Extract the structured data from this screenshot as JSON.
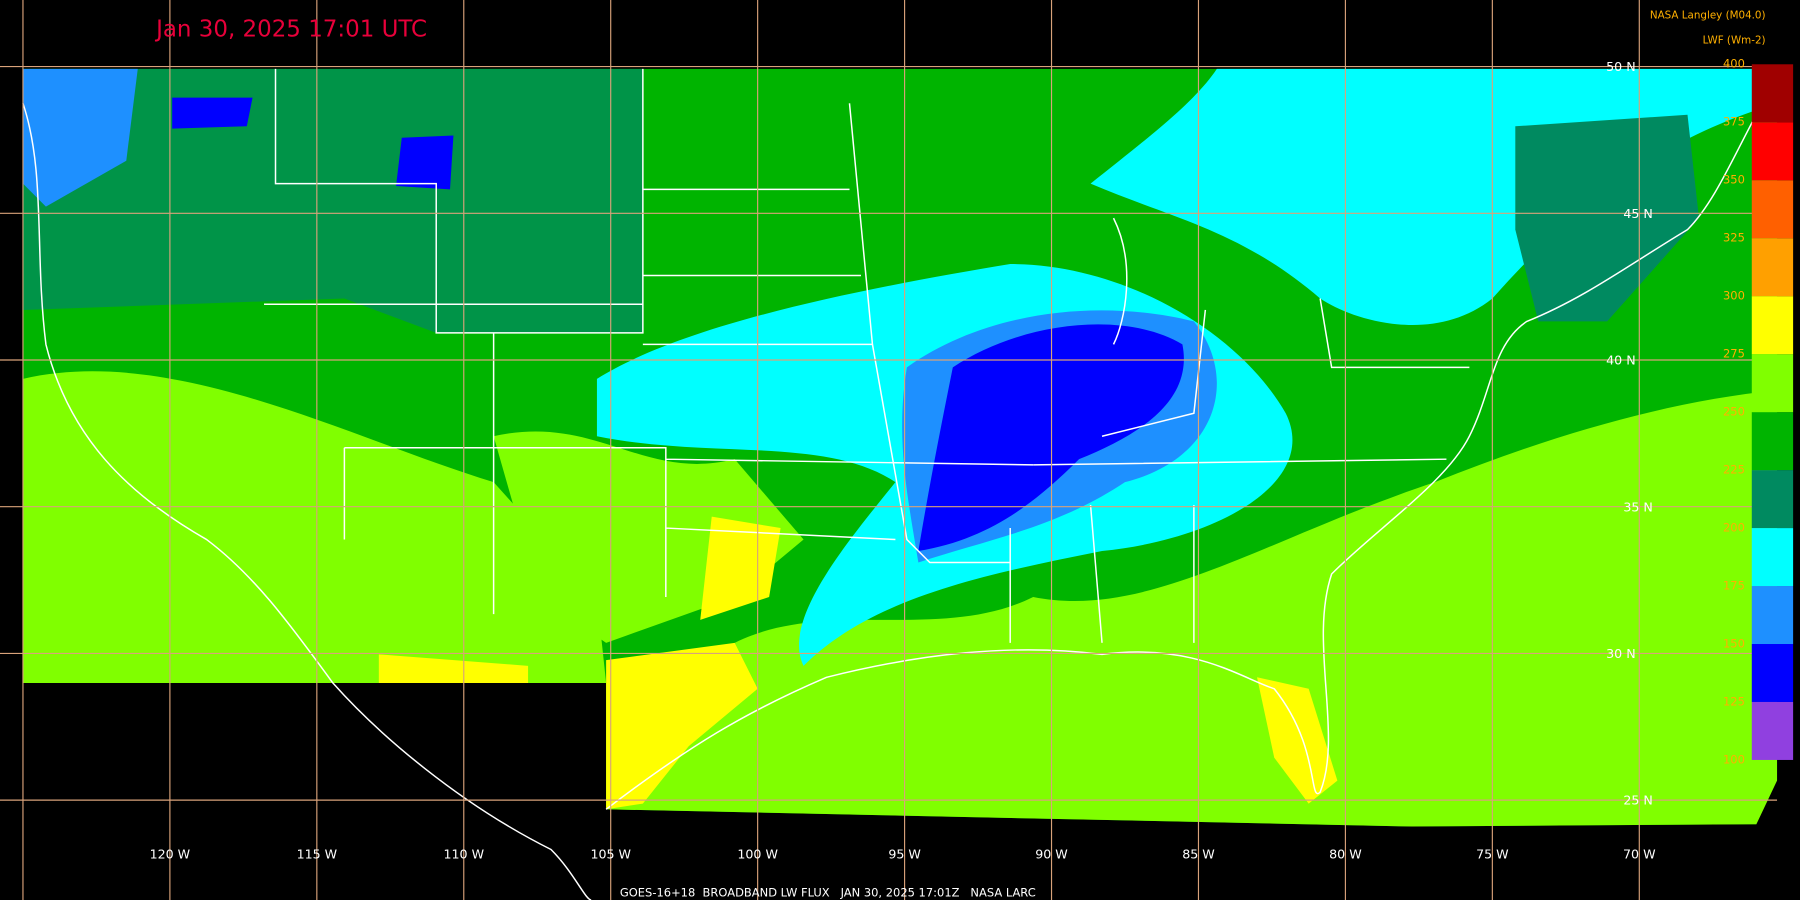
{
  "title": "Jan 30, 2025 17:01 UTC",
  "credit": "NASA Langley (M04.0)",
  "unit": "LWF (Wm-2)",
  "footer": "GOES-16+18  BROADBAND LW FLUX   JAN 30, 2025 17:01Z   NASA LARC",
  "longitude_labels": [
    "120 W",
    "115 W",
    "110 W",
    "105 W",
    "100 W",
    "95 W",
    "90 W",
    "85 W",
    "80 W",
    "75 W",
    "70 W"
  ],
  "latitude_labels": [
    "50 N",
    "45 N",
    "40 N",
    "35 N",
    "30 N",
    "25 N"
  ],
  "colorbar": {
    "ticks": [
      100,
      125,
      150,
      175,
      200,
      225,
      250,
      275,
      300,
      325,
      350,
      375,
      400
    ],
    "colors": [
      "#9040e0",
      "#0000ff",
      "#1e90ff",
      "#00ffff",
      "#008a60",
      "#00b400",
      "#80ff00",
      "#ffff00",
      "#ffa000",
      "#ff6000",
      "#ff0000",
      "#a00000"
    ]
  }
}
